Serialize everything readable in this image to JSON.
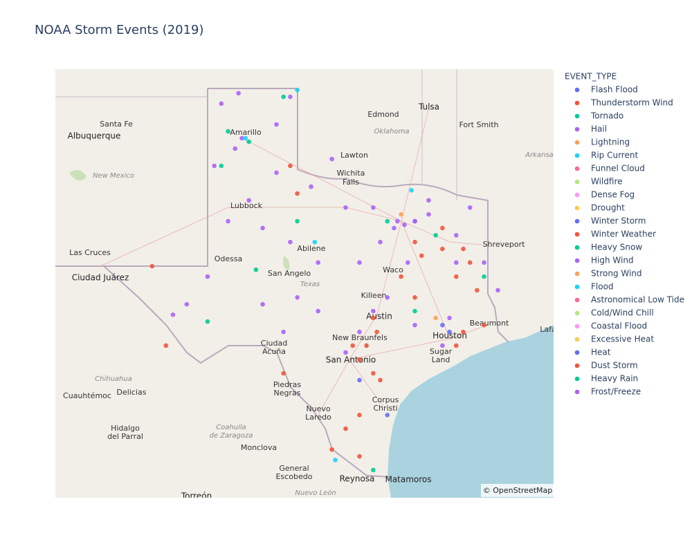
{
  "chart_data": {
    "type": "scattermap",
    "title": "NOAA Storm Events (2019)",
    "legend_title": "EVENT_TYPE",
    "xlim": [
      -107.87,
      -91.6
    ],
    "ylim": [
      25.18,
      37.1
    ],
    "attribution": "© OpenStreetMap",
    "map_labels": [
      "Albuquerque",
      "Santa Fe",
      "Edmond",
      "Tulsa",
      "Oklahoma",
      "Fort Smith",
      "Lawton",
      "Arkansas",
      "New Mexico",
      "Wichita",
      "Falls",
      "Amarillo",
      "Lubbock",
      "Abilene",
      "Odessa",
      "San Angelo",
      "Texas",
      "Shreveport",
      "Las Cruces",
      "Ciudad Juárez",
      "Waco",
      "Killeen",
      "Austin",
      "Beaumont",
      "Houston",
      "Sugar",
      "Land",
      "New Braunfels",
      "San Antonio",
      "Ciudad",
      "Acuña",
      "Piedras",
      "Negras",
      "Chihuahua",
      "Cuauhtémoc",
      "Delicias",
      "Nuevo",
      "Laredo",
      "Corpus",
      "Christi",
      "Hidalgo",
      "del Parral",
      "Coahuila",
      "de Zaragoza",
      "Monclova",
      "General",
      "Escobedo",
      "Reynosa",
      "Matamoros",
      "Torreón",
      "Nuevo León",
      "Lafa"
    ],
    "series": [
      {
        "name": "Flash Flood",
        "color": "#636efa",
        "lon": [
          -95.0,
          -97.03,
          -97.94,
          -96.13,
          -95.23
        ],
        "lat": [
          29.79,
          27.48,
          28.45,
          32.87,
          29.98
        ]
      },
      {
        "name": "Thunderstorm Wind",
        "color": "#EF553B",
        "lon": [
          -96.13,
          -95.91,
          -95.23,
          -94.55,
          -94.33,
          -94.78,
          -97.49,
          -97.37,
          -97.71,
          -98.16,
          -97.94,
          -97.49,
          -97.94,
          -98.39,
          -98.84,
          -97.94,
          -94.78,
          -94.55,
          -93.87,
          -100.2,
          -99.97,
          -104.71,
          -104.26,
          -96.13,
          -96.58,
          -94.1,
          -97.26,
          -100.42,
          -95.23
        ],
        "lat": [
          32.29,
          31.91,
          32.1,
          32.1,
          31.72,
          31.33,
          30.18,
          29.79,
          29.41,
          29.41,
          29.02,
          28.64,
          27.48,
          27.1,
          26.52,
          26.33,
          29.41,
          29.79,
          29.98,
          34.41,
          33.64,
          31.62,
          29.41,
          30.75,
          31.33,
          30.95,
          28.45,
          28.64,
          32.68
        ]
      },
      {
        "name": "Tornado",
        "color": "#00cc96",
        "lon": [
          -102.23,
          -101.55,
          -100.42,
          -99.97,
          -101.32,
          -102.9,
          -97.03,
          -95.45,
          -96.13,
          -93.87,
          -97.49,
          -102.45
        ],
        "lat": [
          35.37,
          35.08,
          36.33,
          32.87,
          31.52,
          30.08,
          32.87,
          32.48,
          30.37,
          31.33,
          25.95,
          34.41
        ]
      },
      {
        "name": "Hail",
        "color": "#ab63fa",
        "lon": [
          -101.78,
          -102.0,
          -102.45,
          -101.89,
          -100.65,
          -100.2,
          -102.68,
          -101.55,
          -102.23,
          -101.1,
          -102.9,
          -103.58,
          -104.03,
          -100.2,
          -99.29,
          -98.39,
          -97.49,
          -96.7,
          -96.81,
          -96.47,
          -96.13,
          -95.68,
          -94.78,
          -93.87,
          -93.42,
          -95.0,
          -95.23,
          -96.13,
          -97.03,
          -97.94,
          -98.39,
          -99.29,
          -99.97,
          -101.1,
          -100.42,
          -95.68,
          -94.33,
          -100.65,
          -99.52,
          -98.84,
          -97.26,
          -97.49,
          -94.78,
          -96.36,
          -97.94
        ],
        "lat": [
          35.18,
          34.89,
          36.14,
          36.43,
          35.56,
          36.33,
          34.41,
          33.45,
          32.87,
          32.68,
          31.33,
          30.56,
          30.27,
          32.29,
          31.72,
          33.25,
          33.25,
          32.87,
          32.68,
          32.77,
          32.87,
          33.06,
          32.48,
          31.72,
          30.95,
          30.18,
          29.41,
          29.98,
          30.75,
          29.79,
          29.22,
          30.37,
          30.75,
          30.56,
          29.79,
          33.45,
          33.25,
          34.22,
          33.83,
          34.6,
          32.29,
          30.37,
          31.72,
          31.72,
          31.72
        ]
      },
      {
        "name": "Lightning",
        "color": "#FFA15A",
        "lon": [
          -96.58,
          -95.45
        ],
        "lat": [
          33.06,
          30.18
        ]
      },
      {
        "name": "Rip Current",
        "color": "#19d3f3",
        "lon": [
          -101.66,
          -99.97,
          -99.4,
          -96.24,
          -98.73
        ],
        "lat": [
          35.18,
          36.52,
          32.29,
          33.73,
          26.23
        ]
      },
      {
        "name": "Funnel Cloud",
        "color": "#FF6692",
        "lon": [],
        "lat": []
      },
      {
        "name": "Wildfire",
        "color": "#B6E880",
        "lon": [],
        "lat": []
      },
      {
        "name": "Dense Fog",
        "color": "#FF97FF",
        "lon": [],
        "lat": []
      },
      {
        "name": "Drought",
        "color": "#FECB52",
        "lon": [],
        "lat": []
      },
      {
        "name": "Winter Storm",
        "color": "#636efa",
        "lon": [],
        "lat": []
      },
      {
        "name": "Winter Weather",
        "color": "#EF553B",
        "lon": [],
        "lat": []
      },
      {
        "name": "Heavy Snow",
        "color": "#00cc96",
        "lon": [],
        "lat": []
      },
      {
        "name": "High Wind",
        "color": "#ab63fa",
        "lon": [],
        "lat": []
      },
      {
        "name": "Strong Wind",
        "color": "#FFA15A",
        "lon": [],
        "lat": []
      },
      {
        "name": "Flood",
        "color": "#19d3f3",
        "lon": [],
        "lat": []
      },
      {
        "name": "Astronomical Low Tide",
        "color": "#FF6692",
        "lon": [],
        "lat": []
      },
      {
        "name": "Cold/Wind Chill",
        "color": "#B6E880",
        "lon": [],
        "lat": []
      },
      {
        "name": "Coastal Flood",
        "color": "#FF97FF",
        "lon": [],
        "lat": []
      },
      {
        "name": "Excessive Heat",
        "color": "#FECB52",
        "lon": [],
        "lat": []
      },
      {
        "name": "Heat",
        "color": "#636efa",
        "lon": [],
        "lat": []
      },
      {
        "name": "Dust Storm",
        "color": "#EF553B",
        "lon": [],
        "lat": []
      },
      {
        "name": "Heavy Rain",
        "color": "#00cc96",
        "lon": [],
        "lat": []
      },
      {
        "name": "Frost/Freeze",
        "color": "#ab63fa",
        "lon": [],
        "lat": []
      }
    ]
  }
}
